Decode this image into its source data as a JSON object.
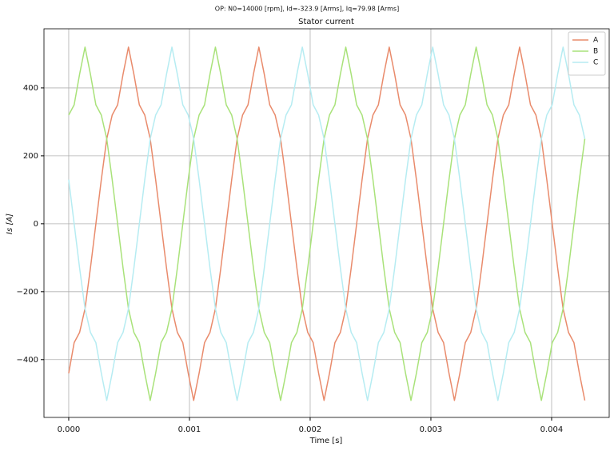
{
  "chart_data": {
    "type": "line",
    "suptitle": "OP:  N0=14000 [rpm], Id=-323.9 [Arms], Iq=79.98 [Arms]",
    "title": "Stator current",
    "xlabel": "Time [s]",
    "ylabel": "Is [A]",
    "x": [
      0,
      4.5e-05,
      9e-05,
      0.000135,
      0.00018,
      0.000225,
      0.00027,
      0.000315,
      0.00036,
      0.000405,
      0.00045,
      0.000495,
      0.00054,
      0.000585,
      0.00063,
      0.000675,
      0.00072,
      0.000765,
      0.00081,
      0.000855,
      0.0009,
      0.000945,
      0.00099,
      0.001035,
      0.00108,
      0.001125,
      0.00117,
      0.001215,
      0.00126,
      0.001305,
      0.00135,
      0.001395,
      0.00144,
      0.001485,
      0.00153,
      0.001575,
      0.00162,
      0.001665,
      0.00171,
      0.001755,
      0.0018,
      0.001845,
      0.00189,
      0.001935,
      0.00198,
      0.002025,
      0.00207,
      0.002115,
      0.00216,
      0.002205,
      0.00225,
      0.002295,
      0.00234,
      0.002385,
      0.00243,
      0.002475,
      0.00252,
      0.002565,
      0.00261,
      0.002655,
      0.0027,
      0.002745,
      0.00279,
      0.002835,
      0.00288,
      0.002925,
      0.00297,
      0.003015,
      0.00306,
      0.003105,
      0.00315,
      0.003195,
      0.00324,
      0.003285,
      0.00333,
      0.003375,
      0.00342,
      0.003465,
      0.00351,
      0.003555,
      0.0036,
      0.003645,
      0.00369,
      0.003735,
      0.00378,
      0.003825,
      0.00387,
      0.003915,
      0.00396,
      0.004005,
      0.00405,
      0.004095,
      0.00414,
      0.004185,
      0.00423,
      0.004275
    ],
    "series": [
      {
        "name": "A",
        "color": "#e98b6c",
        "values": [
          -440,
          -350,
          -320,
          -250,
          -130,
          0,
          130,
          250,
          320,
          350,
          440,
          520,
          440,
          350,
          320,
          250,
          130,
          0,
          -130,
          -250,
          -320,
          -350,
          -440,
          -520,
          -440,
          -350,
          -320,
          -250,
          -130,
          0,
          130,
          250,
          320,
          350,
          440,
          520,
          440,
          350,
          320,
          250,
          130,
          0,
          -130,
          -250,
          -320,
          -350,
          -440,
          -520,
          -440,
          -350,
          -320,
          -250,
          -130,
          0,
          130,
          250,
          320,
          350,
          440,
          520,
          440,
          350,
          320,
          250,
          130,
          0,
          -130,
          -250,
          -320,
          -350,
          -440,
          -520,
          -440,
          -350,
          -320,
          -250,
          -130,
          0,
          130,
          250,
          320,
          350,
          440,
          520,
          440,
          350,
          320,
          250,
          130,
          0,
          -130,
          -250,
          -320,
          -350,
          -440,
          -520
        ]
      },
      {
        "name": "B",
        "color": "#a9e27a",
        "values": [
          320,
          350,
          440,
          520,
          440,
          350,
          320,
          250,
          130,
          0,
          -130,
          -250,
          -320,
          -350,
          -440,
          -520,
          -440,
          -350,
          -320,
          -250,
          -130,
          0,
          130,
          250,
          320,
          350,
          440,
          520,
          440,
          350,
          320,
          250,
          130,
          0,
          -130,
          -250,
          -320,
          -350,
          -440,
          -520,
          -440,
          -350,
          -320,
          -250,
          -130,
          0,
          130,
          250,
          320,
          350,
          440,
          520,
          440,
          350,
          320,
          250,
          130,
          0,
          -130,
          -250,
          -320,
          -350,
          -440,
          -520,
          -440,
          -350,
          -320,
          -250,
          -130,
          0,
          130,
          250,
          320,
          350,
          440,
          520,
          440,
          350,
          320,
          250,
          130,
          0,
          -130,
          -250,
          -320,
          -350,
          -440,
          -520,
          -440,
          -350,
          -320,
          -250,
          -130,
          0,
          130,
          250
        ]
      },
      {
        "name": "C",
        "color": "#b6ecf2",
        "values": [
          130,
          0,
          -130,
          -250,
          -320,
          -350,
          -440,
          -520,
          -440,
          -350,
          -320,
          -250,
          -130,
          0,
          130,
          250,
          320,
          350,
          440,
          520,
          440,
          350,
          320,
          250,
          130,
          0,
          -130,
          -250,
          -320,
          -350,
          -440,
          -520,
          -440,
          -350,
          -320,
          -250,
          -130,
          0,
          130,
          250,
          320,
          350,
          440,
          520,
          440,
          350,
          320,
          250,
          130,
          0,
          -130,
          -250,
          -320,
          -350,
          -440,
          -520,
          -440,
          -350,
          -320,
          -250,
          -130,
          0,
          130,
          250,
          320,
          350,
          440,
          520,
          440,
          350,
          320,
          250,
          130,
          0,
          -130,
          -250,
          -320,
          -350,
          -440,
          -520,
          -440,
          -350,
          -320,
          -250,
          -130,
          0,
          130,
          250,
          320,
          350,
          440,
          520,
          440,
          350,
          320,
          250
        ]
      }
    ],
    "xlim": [
      -0.000205,
      0.004477
    ],
    "ylim": [
      -570,
      574
    ],
    "xticks": [
      {
        "value": 0,
        "label": "0.000"
      },
      {
        "value": 0.001,
        "label": "0.001"
      },
      {
        "value": 0.002,
        "label": "0.002"
      },
      {
        "value": 0.003,
        "label": "0.003"
      },
      {
        "value": 0.004,
        "label": "0.004"
      }
    ],
    "yticks": [
      {
        "value": -400,
        "label": "−400"
      },
      {
        "value": -200,
        "label": "−200"
      },
      0,
      200,
      400
    ],
    "grid": true,
    "legend": "upper right"
  }
}
